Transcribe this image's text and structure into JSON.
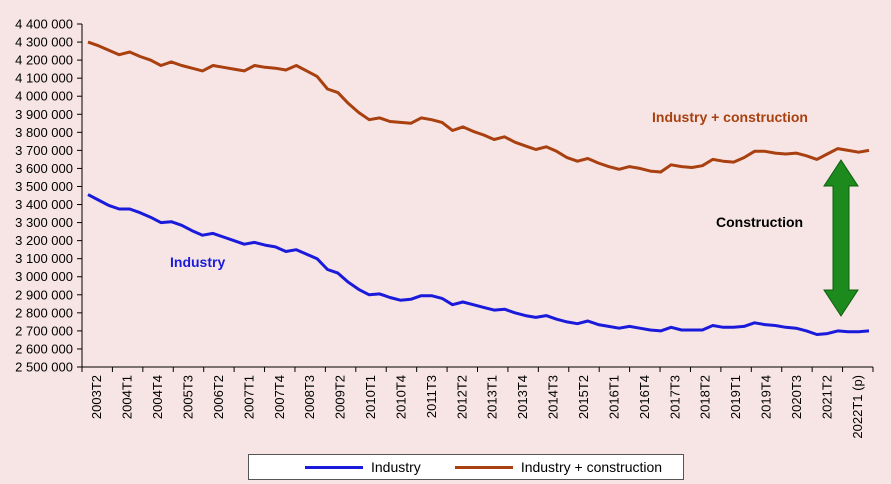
{
  "colors": {
    "industry": "#1a1adb",
    "industry_construction": "#a8400f",
    "arrow": "#1c8a1c",
    "background": "#f7e5e5"
  },
  "annotations": {
    "industry": "Industry",
    "industry_construction": "Industry + construction",
    "construction": "Construction"
  },
  "legend": {
    "industry": "Industry",
    "industry_construction": "Industry + construction"
  },
  "chart_data": {
    "type": "line",
    "title": "",
    "xlabel": "",
    "ylabel": "",
    "ylim": [
      2500000,
      4400000
    ],
    "yticks": [
      4400000,
      4300000,
      4200000,
      4100000,
      4000000,
      3900000,
      3800000,
      3700000,
      3600000,
      3500000,
      3400000,
      3300000,
      3200000,
      3100000,
      3000000,
      2900000,
      2800000,
      2700000,
      2600000,
      2500000
    ],
    "ytick_labels": [
      "4 400 000",
      "4 300 000",
      "4 200 000",
      "4 100 000",
      "4 000 000",
      "3 900 000",
      "3 800 000",
      "3 700 000",
      "3 600 000",
      "3 500 000",
      "3 400 000",
      "3 300 000",
      "3 200 000",
      "3 100 000",
      "3 000 000",
      "2 900 000",
      "2 800 000",
      "2 700 000",
      "2 600 000",
      "2 500 000"
    ],
    "xtick_labels": [
      "2003T2",
      "2004T1",
      "2004T4",
      "2005T3",
      "2006T2",
      "2007T1",
      "2007T4",
      "2008T3",
      "2009T2",
      "2010T1",
      "2010T4",
      "2011T3",
      "2012T2",
      "2013T1",
      "2013T4",
      "2014T3",
      "2015T2",
      "2016T1",
      "2016T4",
      "2017T3",
      "2018T2",
      "2019T1",
      "2019T4",
      "2020T3",
      "2021T2",
      "2022T1 (p)"
    ],
    "grid": false,
    "legend_position": "bottom",
    "series": [
      {
        "name": "Industry",
        "values": [
          3455000,
          3425000,
          3395000,
          3375000,
          3375000,
          3355000,
          3330000,
          3300000,
          3305000,
          3285000,
          3255000,
          3230000,
          3240000,
          3220000,
          3200000,
          3180000,
          3190000,
          3175000,
          3165000,
          3140000,
          3150000,
          3125000,
          3100000,
          3040000,
          3020000,
          2970000,
          2930000,
          2900000,
          2905000,
          2885000,
          2870000,
          2875000,
          2895000,
          2895000,
          2880000,
          2845000,
          2860000,
          2845000,
          2830000,
          2815000,
          2820000,
          2800000,
          2785000,
          2775000,
          2785000,
          2765000,
          2750000,
          2740000,
          2755000,
          2735000,
          2725000,
          2715000,
          2725000,
          2715000,
          2705000,
          2700000,
          2720000,
          2705000,
          2705000,
          2705000,
          2730000,
          2720000,
          2720000,
          2725000,
          2745000,
          2735000,
          2730000,
          2720000,
          2715000,
          2700000,
          2680000,
          2685000,
          2700000,
          2695000,
          2695000,
          2700000
        ]
      },
      {
        "name": "Industry + construction",
        "values": [
          4300000,
          4280000,
          4255000,
          4230000,
          4245000,
          4220000,
          4200000,
          4170000,
          4190000,
          4170000,
          4155000,
          4140000,
          4170000,
          4160000,
          4150000,
          4140000,
          4170000,
          4160000,
          4155000,
          4145000,
          4170000,
          4140000,
          4110000,
          4040000,
          4020000,
          3960000,
          3910000,
          3870000,
          3880000,
          3860000,
          3855000,
          3850000,
          3880000,
          3870000,
          3855000,
          3810000,
          3830000,
          3805000,
          3785000,
          3760000,
          3775000,
          3745000,
          3725000,
          3705000,
          3720000,
          3695000,
          3660000,
          3640000,
          3655000,
          3630000,
          3610000,
          3595000,
          3610000,
          3600000,
          3585000,
          3580000,
          3620000,
          3610000,
          3605000,
          3615000,
          3650000,
          3640000,
          3635000,
          3660000,
          3695000,
          3695000,
          3685000,
          3680000,
          3685000,
          3670000,
          3650000,
          3680000,
          3710000,
          3700000,
          3690000,
          3700000
        ]
      }
    ]
  }
}
